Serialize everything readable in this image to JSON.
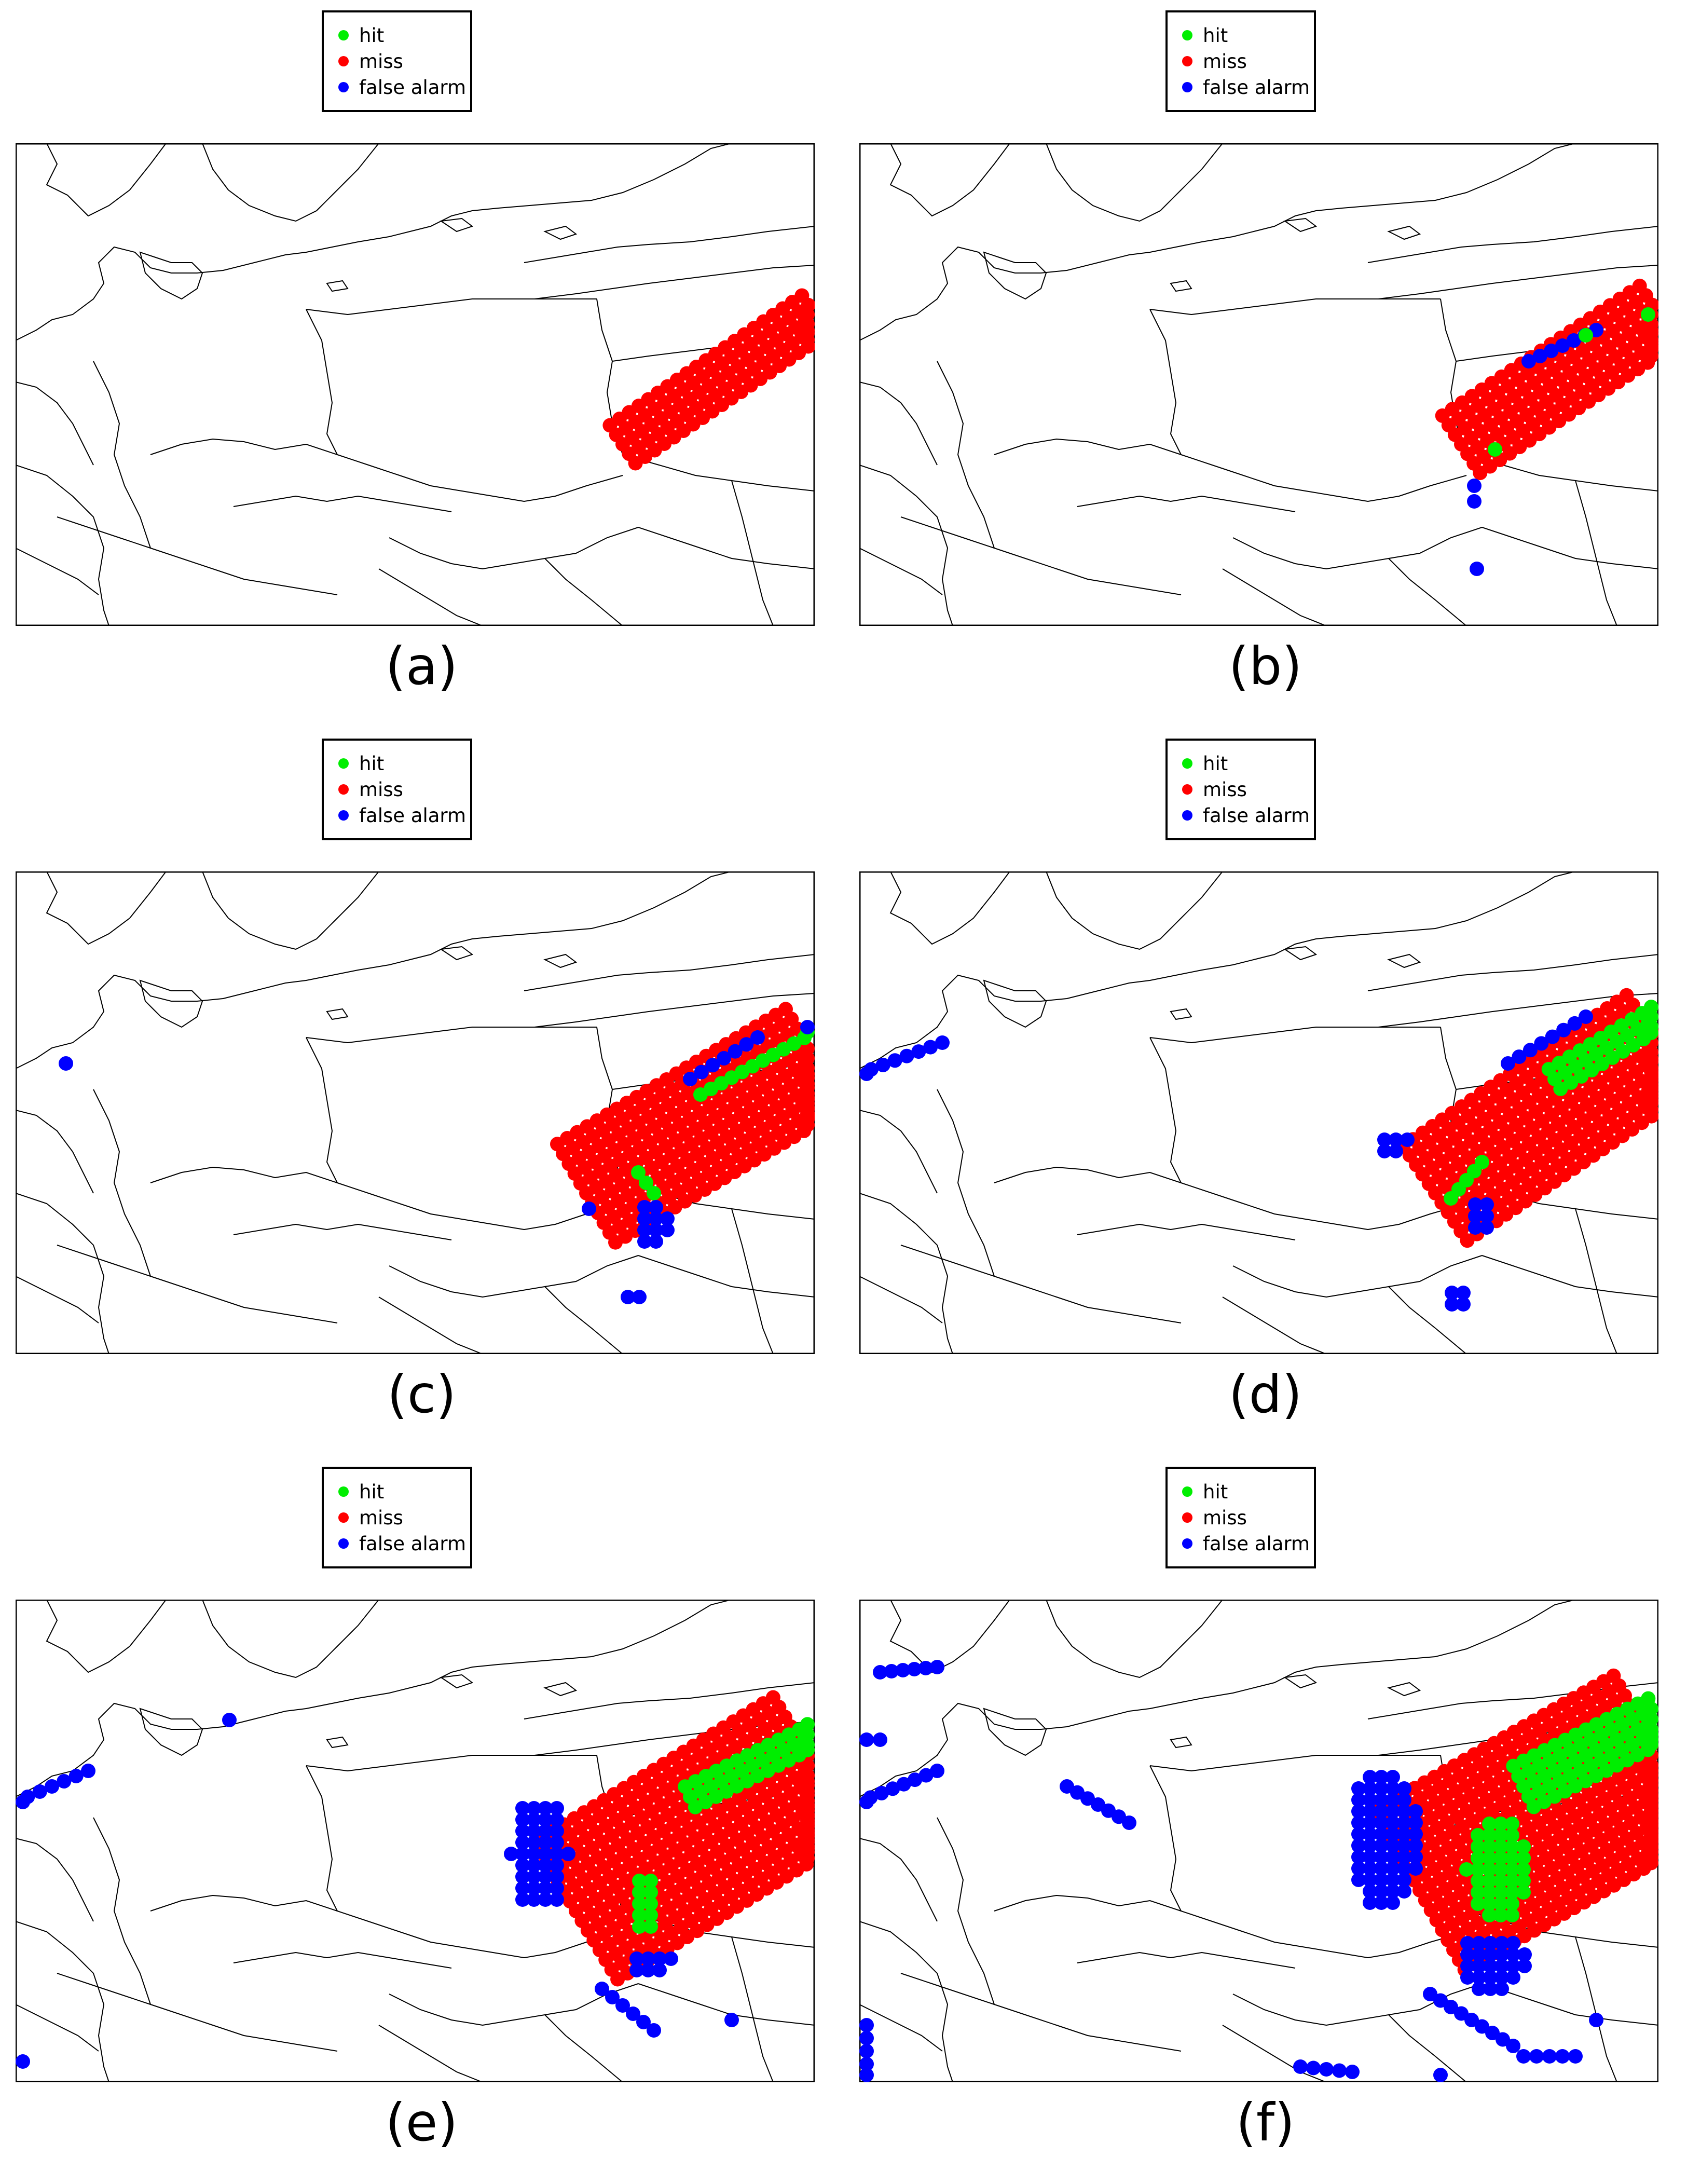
{
  "colors": {
    "hit": "#00ee00",
    "miss": "#ff0000",
    "false_alarm": "#0000ff",
    "border": "#000000",
    "background": "#ffffff"
  },
  "legend": {
    "hit": "hit",
    "miss": "miss",
    "false_alarm": "false alarm"
  },
  "panels": [
    {
      "label": "(a)"
    },
    {
      "label": "(b)"
    },
    {
      "label": "(c)"
    },
    {
      "label": "(d)"
    },
    {
      "label": "(e)"
    },
    {
      "label": "(f)"
    }
  ]
}
